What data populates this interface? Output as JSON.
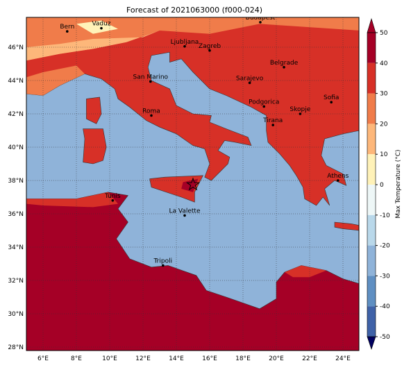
{
  "header": {
    "title": "Forecast of 2021063000 (f000-024)"
  },
  "map": {
    "cities": [
      "Bern",
      "Vaduz",
      "Budapest",
      "Ljubljana",
      "Zagreb",
      "San Marino",
      "Belgrade",
      "Sarajevo",
      "Roma",
      "Podgorica",
      "Skopje",
      "Sofia",
      "Tirana",
      "Athens",
      "Tunis",
      "La Valette",
      "Tripoli"
    ],
    "lon_labels": [
      "6°E",
      "8°E",
      "10°E",
      "12°E",
      "14°E",
      "16°E",
      "18°E",
      "20°E",
      "22°E",
      "24°E"
    ],
    "lat_labels": [
      "46°N",
      "44°N",
      "42°N",
      "40°N",
      "38°N",
      "36°N",
      "34°N",
      "32°N",
      "30°N",
      "28°N"
    ]
  },
  "colorbar": {
    "label": "Max Temperature (°C)",
    "ticks": [
      50,
      40,
      30,
      20,
      10,
      0,
      -10,
      -20,
      -30,
      -40,
      -50
    ],
    "colors": [
      "#a50026",
      "#d73027",
      "#f07c4a",
      "#fdb77a",
      "#fff2b8",
      "#eef7f7",
      "#b9d8ea",
      "#8fb3d9",
      "#5f8fc2",
      "#3f62a8",
      "#1f2a85"
    ]
  }
}
